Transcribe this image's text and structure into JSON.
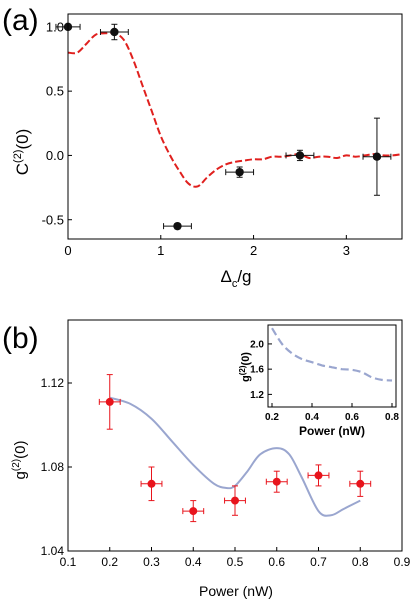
{
  "chart_data": [
    {
      "type": "scatter",
      "panel_label": "(a)",
      "xlabel_main": "Δ",
      "xlabel_sub": "c",
      "xlabel_tail": "/g",
      "ylabel_main": "C",
      "ylabel_sup": "(2)",
      "ylabel_tail": "(0)",
      "xlim": [
        0,
        3.6
      ],
      "ylim": [
        -0.65,
        1.1
      ],
      "x_ticks": [
        0,
        1,
        2,
        3
      ],
      "x_tick_labels": [
        "0",
        "1",
        "2",
        "3"
      ],
      "y_ticks": [
        1.0,
        0.5,
        0.0,
        -0.5
      ],
      "y_tick_labels": [
        "1.0",
        "0.5",
        "0.0",
        "-0.5"
      ],
      "points": [
        {
          "x": 0.0,
          "y": 1.0,
          "xerr": 0.13,
          "yerr": 0.0
        },
        {
          "x": 0.5,
          "y": 0.96,
          "xerr": 0.15,
          "yerr": 0.06
        },
        {
          "x": 1.18,
          "y": -0.55,
          "xerr": 0.15,
          "yerr": 0.0
        },
        {
          "x": 1.85,
          "y": -0.13,
          "xerr": 0.15,
          "yerr": 0.04
        },
        {
          "x": 2.5,
          "y": 0.0,
          "xerr": 0.15,
          "yerr": 0.04
        },
        {
          "x": 3.33,
          "y": -0.01,
          "xerr": 0.15,
          "yerr": 0.3
        }
      ],
      "curve": {
        "x": [
          0.0,
          0.1,
          0.2,
          0.3,
          0.4,
          0.5,
          0.6,
          0.7,
          0.8,
          0.9,
          1.0,
          1.1,
          1.2,
          1.3,
          1.4,
          1.5,
          1.6,
          1.7,
          1.8,
          1.9,
          2.0,
          2.1,
          2.2,
          2.3,
          2.4,
          2.5,
          2.6,
          2.7,
          2.8,
          2.9,
          3.0,
          3.1,
          3.2,
          3.3,
          3.4,
          3.5,
          3.6
        ],
        "y": [
          0.8,
          0.8,
          0.87,
          0.94,
          0.95,
          0.95,
          0.9,
          0.75,
          0.55,
          0.35,
          0.15,
          0.0,
          -0.12,
          -0.22,
          -0.24,
          -0.17,
          -0.11,
          -0.07,
          -0.05,
          -0.04,
          -0.03,
          -0.03,
          -0.01,
          -0.01,
          0.0,
          0.01,
          -0.02,
          -0.01,
          -0.01,
          -0.02,
          0.0,
          -0.01,
          0.0,
          0.01,
          0.0,
          0.0,
          0.01
        ]
      },
      "point_color": "#111111",
      "curve_color": "#e0201e"
    },
    {
      "type": "scatter",
      "panel_label": "(b)",
      "xlabel": "Power (nW)",
      "ylabel_main": "g",
      "ylabel_sup": "(2)",
      "ylabel_tail": "(0)",
      "xlim": [
        0.1,
        0.9
      ],
      "ylim": [
        1.04,
        1.15
      ],
      "x_ticks": [
        0.1,
        0.2,
        0.3,
        0.4,
        0.5,
        0.6,
        0.7,
        0.8,
        0.9
      ],
      "x_tick_labels": [
        "0.1",
        "0.2",
        "0.3",
        "0.4",
        "0.5",
        "0.6",
        "0.7",
        "0.8",
        "0.9"
      ],
      "y_ticks": [
        1.04,
        1.08,
        1.12
      ],
      "y_tick_labels": [
        "1.04",
        "1.08",
        "1.12"
      ],
      "points": [
        {
          "x": 0.2,
          "y": 1.111,
          "xerr": 0.025,
          "yerr": 0.013
        },
        {
          "x": 0.3,
          "y": 1.072,
          "xerr": 0.025,
          "yerr": 0.008
        },
        {
          "x": 0.4,
          "y": 1.059,
          "xerr": 0.025,
          "yerr": 0.005
        },
        {
          "x": 0.5,
          "y": 1.064,
          "xerr": 0.025,
          "yerr": 0.007
        },
        {
          "x": 0.6,
          "y": 1.073,
          "xerr": 0.025,
          "yerr": 0.005
        },
        {
          "x": 0.7,
          "y": 1.076,
          "xerr": 0.025,
          "yerr": 0.005
        },
        {
          "x": 0.8,
          "y": 1.072,
          "xerr": 0.025,
          "yerr": 0.006
        }
      ],
      "curve": {
        "x": [
          0.2,
          0.25,
          0.3,
          0.35,
          0.4,
          0.45,
          0.48,
          0.5,
          0.53,
          0.56,
          0.6,
          0.63,
          0.66,
          0.7,
          0.73,
          0.76,
          0.8
        ],
        "y": [
          1.113,
          1.11,
          1.103,
          1.092,
          1.081,
          1.072,
          1.07,
          1.071,
          1.078,
          1.086,
          1.089,
          1.086,
          1.075,
          1.059,
          1.057,
          1.06,
          1.064
        ]
      },
      "point_color": "#e8141c",
      "curve_color": "#9aa6cf",
      "inset": {
        "xlabel": "Power (nW)",
        "ylabel_main": "g",
        "ylabel_sup": "(2)",
        "ylabel_tail": "(0)",
        "xlim": [
          0.18,
          0.82
        ],
        "ylim": [
          1.0,
          2.3
        ],
        "x_ticks": [
          0.2,
          0.4,
          0.6,
          0.8
        ],
        "x_tick_labels": [
          "0.2",
          "0.4",
          "0.6",
          "0.8"
        ],
        "y_ticks": [
          1.2,
          1.6,
          2.0
        ],
        "y_tick_labels": [
          "1.2",
          "1.6",
          "2.0"
        ],
        "curve": {
          "x": [
            0.2,
            0.25,
            0.3,
            0.35,
            0.4,
            0.45,
            0.5,
            0.55,
            0.6,
            0.65,
            0.7,
            0.75,
            0.8
          ],
          "y": [
            2.25,
            2.0,
            1.85,
            1.76,
            1.71,
            1.66,
            1.63,
            1.6,
            1.59,
            1.55,
            1.47,
            1.43,
            1.42
          ]
        },
        "curve_color": "#9aa6cf"
      }
    }
  ]
}
